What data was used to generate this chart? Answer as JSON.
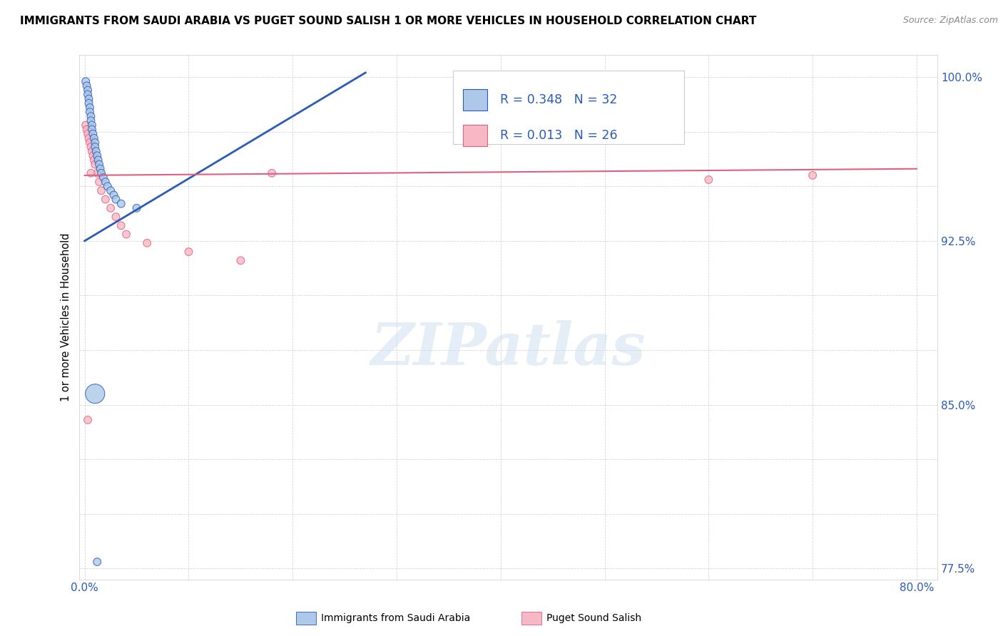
{
  "title": "IMMIGRANTS FROM SAUDI ARABIA VS PUGET SOUND SALISH 1 OR MORE VEHICLES IN HOUSEHOLD CORRELATION CHART",
  "source": "Source: ZipAtlas.com",
  "ylabel": "1 or more Vehicles in Household",
  "blue_R": 0.348,
  "blue_N": 32,
  "pink_R": 0.013,
  "pink_N": 26,
  "blue_color": "#adc8e8",
  "pink_color": "#f5b8c4",
  "blue_line_color": "#2b5bb8",
  "pink_line_color": "#e06080",
  "legend_color": "#2b5bb8",
  "watermark": "ZIPatlas",
  "blue_scatter_x": [
    0.001,
    0.002,
    0.003,
    0.003,
    0.004,
    0.004,
    0.005,
    0.005,
    0.006,
    0.006,
    0.007,
    0.007,
    0.008,
    0.009,
    0.01,
    0.01,
    0.011,
    0.012,
    0.013,
    0.014,
    0.015,
    0.016,
    0.018,
    0.02,
    0.022,
    0.025,
    0.028,
    0.03,
    0.035,
    0.05,
    0.01,
    0.012
  ],
  "blue_scatter_y": [
    0.998,
    0.996,
    0.994,
    0.992,
    0.99,
    0.988,
    0.986,
    0.984,
    0.982,
    0.98,
    0.978,
    0.976,
    0.974,
    0.972,
    0.97,
    0.968,
    0.966,
    0.964,
    0.962,
    0.96,
    0.958,
    0.956,
    0.954,
    0.952,
    0.95,
    0.948,
    0.946,
    0.944,
    0.942,
    0.94,
    0.855,
    0.778
  ],
  "blue_scatter_sizes": [
    60,
    60,
    60,
    60,
    60,
    60,
    60,
    60,
    60,
    60,
    60,
    60,
    60,
    60,
    60,
    60,
    60,
    60,
    60,
    60,
    60,
    60,
    60,
    60,
    60,
    60,
    60,
    60,
    60,
    60,
    380,
    60
  ],
  "pink_scatter_x": [
    0.001,
    0.002,
    0.003,
    0.004,
    0.005,
    0.006,
    0.007,
    0.008,
    0.009,
    0.01,
    0.012,
    0.014,
    0.016,
    0.02,
    0.025,
    0.03,
    0.035,
    0.04,
    0.06,
    0.1,
    0.15,
    0.18,
    0.6,
    0.7,
    0.003,
    0.006
  ],
  "pink_scatter_y": [
    0.978,
    0.976,
    0.974,
    0.972,
    0.97,
    0.968,
    0.966,
    0.964,
    0.962,
    0.96,
    0.956,
    0.952,
    0.948,
    0.944,
    0.94,
    0.936,
    0.932,
    0.928,
    0.924,
    0.92,
    0.916,
    0.956,
    0.953,
    0.955,
    0.843,
    0.956
  ],
  "pink_scatter_sizes": [
    60,
    60,
    60,
    60,
    60,
    60,
    60,
    60,
    60,
    60,
    60,
    60,
    60,
    60,
    60,
    60,
    60,
    60,
    60,
    60,
    60,
    60,
    60,
    60,
    60,
    60
  ],
  "blue_trend_x": [
    0.0,
    0.27
  ],
  "blue_trend_y": [
    0.925,
    1.002
  ],
  "pink_trend_x": [
    0.0,
    0.8
  ],
  "pink_trend_y": [
    0.955,
    0.958
  ],
  "xmin": -0.005,
  "xmax": 0.82,
  "ymin": 0.77,
  "ymax": 1.01,
  "ytick_vals": [
    0.775,
    0.8,
    0.825,
    0.85,
    0.875,
    0.9,
    0.925,
    0.95,
    0.975,
    1.0
  ],
  "ytick_labels": [
    "77.5%",
    "",
    "",
    "85.0%",
    "",
    "",
    "92.5%",
    "",
    "",
    "100.0%"
  ],
  "xtick_vals": [
    0.0,
    0.1,
    0.2,
    0.3,
    0.4,
    0.5,
    0.6,
    0.7,
    0.8
  ],
  "xtick_labels": [
    "0.0%",
    "",
    "",
    "",
    "",
    "",
    "",
    "",
    "80.0%"
  ]
}
